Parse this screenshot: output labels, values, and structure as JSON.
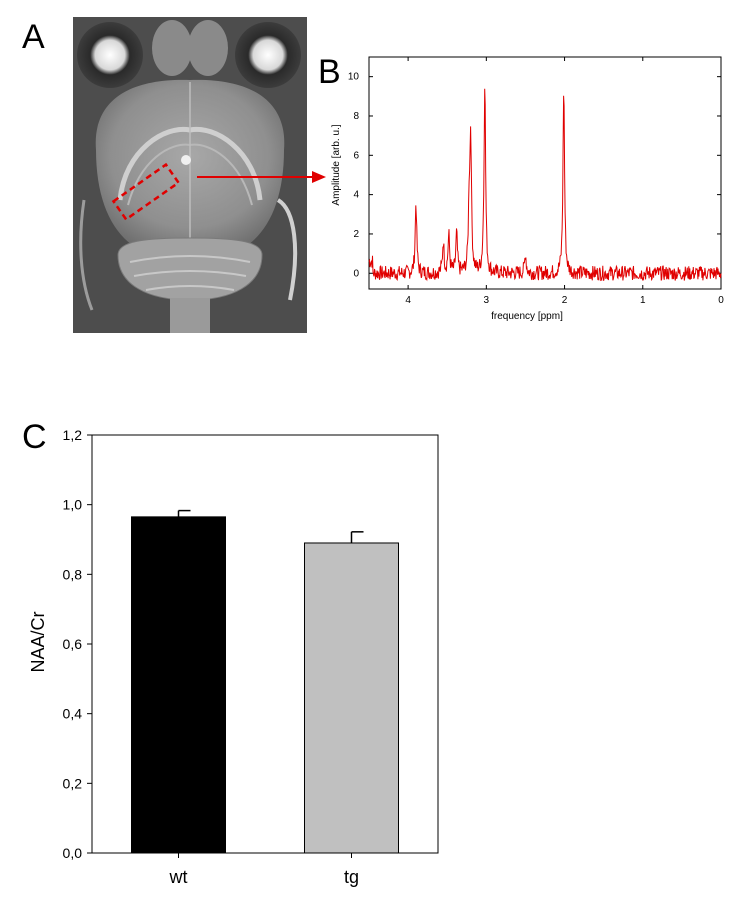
{
  "panels": {
    "a": "A",
    "b": "B",
    "c": "C"
  },
  "chart_data": [
    {
      "panel": "B",
      "type": "line",
      "xlabel": "frequency [ppm]",
      "ylabel": "Amplitude [arb. u.]",
      "xlim": [
        4.5,
        0
      ],
      "ylim": [
        -0.8,
        11
      ],
      "x_ticks": [
        "4",
        "3",
        "2",
        "1",
        "0"
      ],
      "y_ticks": [
        "0",
        "2",
        "4",
        "6",
        "8",
        "10"
      ],
      "grid": false,
      "line_color": "#e00000",
      "peaks": [
        {
          "x": 3.9,
          "y": 3.6
        },
        {
          "x": 3.55,
          "y": 1.6
        },
        {
          "x": 3.48,
          "y": 1.9
        },
        {
          "x": 3.38,
          "y": 2.0
        },
        {
          "x": 3.22,
          "y": 3.2
        },
        {
          "x": 3.2,
          "y": 6.7
        },
        {
          "x": 3.02,
          "y": 9.8
        },
        {
          "x": 2.5,
          "y": 1.0
        },
        {
          "x": 2.01,
          "y": 9.5
        }
      ]
    },
    {
      "panel": "C",
      "type": "bar",
      "categories": [
        "wt",
        "tg"
      ],
      "values": [
        0.965,
        0.89
      ],
      "errors": [
        0.018,
        0.032
      ],
      "colors": [
        "#000000",
        "#c0c0c0"
      ],
      "xlabel": "",
      "ylabel": "NAA/Cr",
      "ylim": [
        0,
        1.2
      ],
      "y_ticks": [
        "0,0",
        "0,2",
        "0,4",
        "0,6",
        "0,8",
        "1,0",
        "1,2"
      ],
      "grid": false
    }
  ]
}
